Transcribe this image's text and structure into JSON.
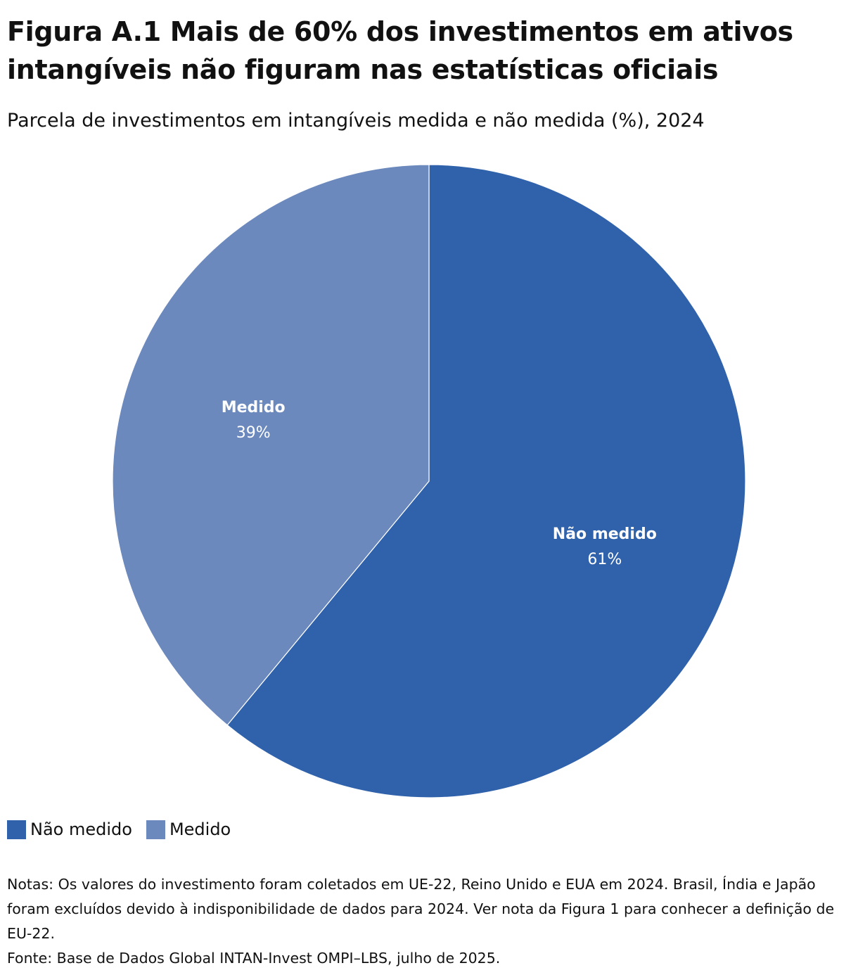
{
  "header": {
    "title": "Figura A.1 Mais de 60% dos investimentos em ativos intangíveis não figuram nas estatísticas oficiais",
    "subtitle": "Parcela de investimentos em intangíveis medida e não medida (%), 2024"
  },
  "chart_data": {
    "type": "pie",
    "title": "Figura A.1 Mais de 60% dos investimentos em ativos intangíveis não figuram nas estatísticas oficiais",
    "subtitle": "Parcela de investimentos em intangíveis medida e não medida (%), 2024",
    "unit": "%",
    "start": "12 o'clock",
    "direction": "clockwise",
    "slices": [
      {
        "label": "Não medido",
        "value": 61,
        "value_label": "61%",
        "color": "#3062ab"
      },
      {
        "label": "Medido",
        "value": 39,
        "value_label": "39%",
        "color": "#6b89bd"
      }
    ],
    "legend": {
      "position": "bottom-left",
      "entries": [
        "Não medido",
        "Medido"
      ]
    }
  },
  "footer": {
    "notes": "Notas: Os valores do investimento foram coletados em UE-22, Reino Unido e EUA em 2024. Brasil, Índia e Japão foram excluídos devido à indisponibilidade de dados para 2024. Ver nota da Figura 1 para conhecer a definição de EU-22.",
    "source": "Fonte: Base de Dados Global INTAN-Invest OMPI–LBS, julho de 2025."
  }
}
